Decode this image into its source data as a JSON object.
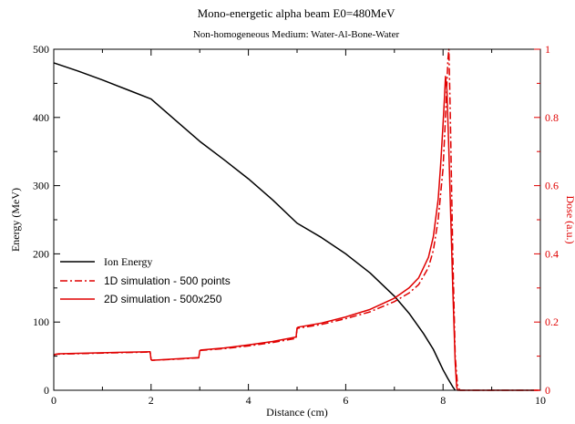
{
  "chart_data": {
    "type": "line",
    "title": "Mono-energetic alpha beam E0=480MeV",
    "subtitle": "Non-homogeneous Medium: Water-Al-Bone-Water",
    "xlabel": "Distance (cm)",
    "ylabel_left": "Energy (MeV)",
    "ylabel_right": "Dose (a.u.)",
    "xlim": [
      0,
      10
    ],
    "ylim_left": [
      0,
      500
    ],
    "ylim_right": [
      0,
      1
    ],
    "x_ticks": [
      "0",
      "2",
      "4",
      "6",
      "8",
      "10"
    ],
    "y_left_ticks": [
      "0",
      "100",
      "200",
      "300",
      "400",
      "500"
    ],
    "y_right_ticks": [
      "0",
      "0.2",
      "0.4",
      "0.6",
      "0.8",
      "1"
    ],
    "grid": false,
    "legend_position": "center-left",
    "colors": {
      "energy": "#000000",
      "dose": "#e00000",
      "axes": "#000000"
    },
    "series": [
      {
        "name": "Ion Energy",
        "axis": "left",
        "style": "solid",
        "color": "#000000",
        "x": [
          0,
          0.5,
          1,
          1.5,
          2,
          2.5,
          3,
          3.5,
          4,
          4.5,
          5,
          5.5,
          6,
          6.5,
          7,
          7.3,
          7.6,
          7.8,
          8.0,
          8.1,
          8.2,
          8.25
        ],
        "y": [
          480,
          468,
          455,
          441,
          427,
          396,
          365,
          338,
          310,
          279,
          245,
          224,
          200,
          172,
          138,
          113,
          83,
          60,
          30,
          17,
          5,
          0
        ]
      },
      {
        "name": "1D simulation - 500 points",
        "axis": "right",
        "style": "dashdot",
        "color": "#e00000",
        "x": [
          0,
          0.02,
          0.1,
          1,
          1.98,
          2.0,
          2.02,
          2.5,
          2.98,
          3.0,
          3.02,
          3.5,
          4,
          4.5,
          4.98,
          5.0,
          5.02,
          5.5,
          6,
          6.5,
          7,
          7.3,
          7.5,
          7.7,
          7.8,
          7.9,
          8.0,
          8.05,
          8.1,
          8.12,
          8.15,
          8.2,
          8.25,
          8.3,
          8.35,
          9,
          10
        ],
        "y": [
          0.1,
          0.105,
          0.106,
          0.109,
          0.112,
          0.09,
          0.088,
          0.091,
          0.095,
          0.115,
          0.117,
          0.122,
          0.13,
          0.14,
          0.152,
          0.18,
          0.182,
          0.193,
          0.21,
          0.23,
          0.26,
          0.285,
          0.31,
          0.36,
          0.41,
          0.5,
          0.65,
          0.8,
          0.97,
          1.0,
          0.8,
          0.4,
          0.1,
          0.01,
          0,
          0,
          0
        ]
      },
      {
        "name": "2D simulation - 500x250",
        "axis": "right",
        "style": "solid",
        "color": "#e00000",
        "x": [
          0,
          0.02,
          0.1,
          1,
          1.98,
          2.0,
          2.02,
          2.5,
          2.98,
          3.0,
          3.02,
          3.5,
          4,
          4.5,
          4.98,
          5.0,
          5.02,
          5.5,
          6,
          6.5,
          7,
          7.3,
          7.5,
          7.7,
          7.8,
          7.9,
          7.95,
          8.0,
          8.03,
          8.05,
          8.08,
          8.12,
          8.2,
          8.25,
          8.28,
          8.3,
          9,
          10
        ],
        "y": [
          0.1,
          0.105,
          0.107,
          0.11,
          0.113,
          0.09,
          0.088,
          0.092,
          0.096,
          0.116,
          0.118,
          0.124,
          0.133,
          0.143,
          0.156,
          0.183,
          0.185,
          0.197,
          0.215,
          0.237,
          0.27,
          0.3,
          0.33,
          0.39,
          0.45,
          0.56,
          0.66,
          0.78,
          0.86,
          0.92,
          0.88,
          0.7,
          0.3,
          0.08,
          0.01,
          0,
          0,
          0
        ]
      }
    ]
  }
}
